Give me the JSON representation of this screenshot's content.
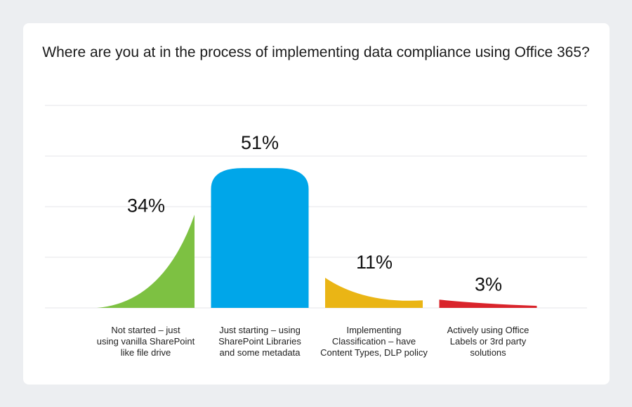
{
  "chart_data": {
    "type": "bar",
    "title": "Where are you at in the process of implementing data compliance using Office 365?",
    "categories": [
      [
        "Not started – just",
        "using vanilla SharePoint",
        "like file drive"
      ],
      [
        "Just starting – using",
        "SharePoint Libraries",
        "and some metadata"
      ],
      [
        "Implementing",
        "Classification – have",
        "Content Types, DLP policy"
      ],
      [
        "Actively using Office",
        "Labels or 3rd party",
        "solutions"
      ]
    ],
    "values": [
      34,
      51,
      11,
      3
    ],
    "value_labels": [
      "34%",
      "51%",
      "11%",
      "3%"
    ],
    "colors": [
      "#7dc142",
      "#00a6e9",
      "#eab515",
      "#d9242b"
    ],
    "grid": true,
    "legend": "none"
  }
}
